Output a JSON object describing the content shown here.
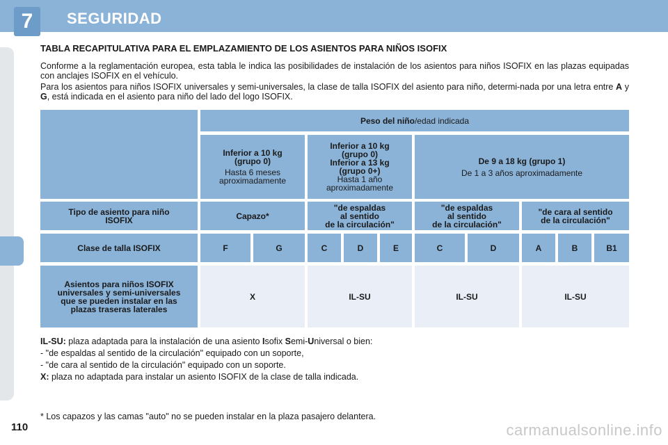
{
  "header": {
    "chapter_number": "7",
    "chapter_title": "SEGURIDAD"
  },
  "section_title": "TABLA RECAPITULATIVA PARA EL EMPLAZAMIENTO DE LOS ASIENTOS PARA NIÑOS ISOFIX",
  "intro": {
    "p1": "Conforme a la reglamentación europea, esta tabla le indica las posibilidades de instalación de los asientos para niños ISOFIX en las plazas equipadas con anclajes ISOFIX en el vehículo.",
    "p2_a": "Para los asientos para niños ISOFIX universales y semi-universales, la clase de talla ISOFIX del asiento para niño, determi-nada por una letra entre ",
    "p2_b": "A",
    "p2_c": " y ",
    "p2_d": "G",
    "p2_e": ", está indicada en el asiento para niño del lado del logo ISOFIX."
  },
  "table": {
    "weight_header_bold": "Peso del niño",
    "weight_header_rest": "/edad indicada",
    "groups": [
      {
        "line1": "Inferior a 10 kg",
        "line2": "(grupo 0)",
        "sub1": "Hasta 6 meses",
        "sub2": "aproximadamente"
      },
      {
        "line1": "Inferior a 10 kg",
        "line2": "(grupo 0)",
        "line3": "Inferior a 13 kg",
        "line4": "(grupo 0+)",
        "sub1": "Hasta 1 año",
        "sub2": "aproximadamente"
      },
      {
        "line1": "De 9 a 18 kg (grupo 1)",
        "sub1": "De 1 a 3 años aproximadamente"
      }
    ],
    "type_row": {
      "label1": "Tipo de asiento para niño",
      "label2": "ISOFIX",
      "capazo": "Capazo*",
      "espaldas1_a": "\"de espaldas",
      "espaldas1_b": "al sentido",
      "espaldas1_c": "de la circulación\"",
      "espaldas2_a": "\"de espaldas",
      "espaldas2_b": "al sentido",
      "espaldas2_c": "de la circulación\"",
      "cara_a": "\"de cara al sentido",
      "cara_b": "de la circulación\""
    },
    "class_row": {
      "label": "Clase de talla ISOFIX",
      "classes": [
        "F",
        "G",
        "C",
        "D",
        "E",
        "C",
        "D",
        "A",
        "B",
        "B1"
      ]
    },
    "result_row": {
      "label1": "Asientos para niños ISOFIX",
      "label2": "universales y semi-universales",
      "label3": "que se pueden instalar en las",
      "label4": "plazas traseras laterales",
      "values": [
        "X",
        "IL-SU",
        "IL-SU",
        "IL-SU"
      ]
    }
  },
  "notes": {
    "ilsu_label": "IL-SU:",
    "ilsu_text_a": " plaza adaptada para la instalación de una asiento ",
    "ilsu_I": "I",
    "ilsu_text_b": "sofix ",
    "ilsu_S": "S",
    "ilsu_text_c": "emi-",
    "ilsu_U": "U",
    "ilsu_text_d": "niversal o bien:",
    "bullet1": "-    \"de espaldas al sentido de la circulación\" equipado con un soporte,",
    "bullet2": "-    \"de cara al sentido de la circulación\" equipado con un soporte.",
    "x_label": "X:",
    "x_text": " plaza no adaptada para instalar un asiento ISOFIX de la clase de talla indicada."
  },
  "footnote": "* Los capazos y las camas \"auto\" no se pueden instalar en la plaza pasajero delantera.",
  "page_number": "110",
  "watermark": "carmanualsonline.info"
}
